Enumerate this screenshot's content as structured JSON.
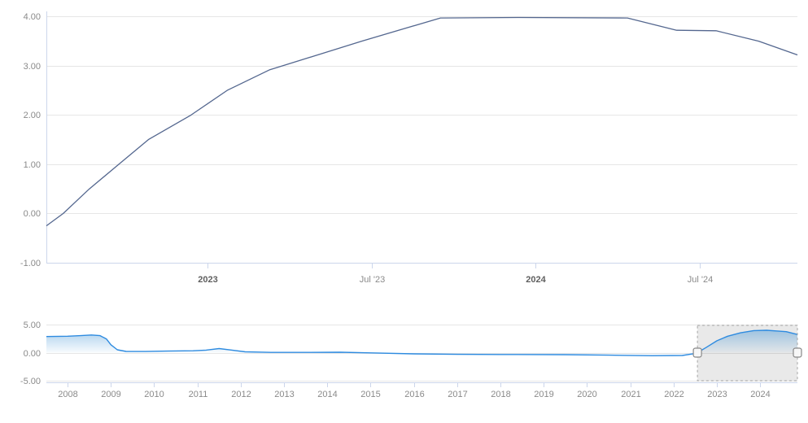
{
  "page": {
    "background": "#ffffff",
    "description": "Stock-style interest rate line chart with bottom range navigator"
  },
  "colors": {
    "main_line": "#54678f",
    "grid": "#e6e6e6",
    "axis": "#ccd6eb",
    "label": "#8a8a8a",
    "label_bold": "#5f5f5f",
    "nav_line": "#2e8be0",
    "nav_fill_top": "rgba(66,148,214,0.55)",
    "nav_fill_bottom": "rgba(66,148,214,0.04)",
    "selection_fill": "rgba(0,0,0,0.085)",
    "selection_border": "#a6a6a6",
    "handle_fill": "#f7f7f7",
    "handle_border": "#888888"
  },
  "chart_data": [
    {
      "id": "main-chart",
      "type": "line",
      "title": "",
      "xlabel": "",
      "ylabel": "",
      "legend": "none",
      "grid": "horizontal",
      "xlim": [
        2022.509,
        2024.798
      ],
      "ylim": [
        -1,
        4.17
      ],
      "x_ticks": [
        {
          "t": 2023.0,
          "label": "2023",
          "bold": true
        },
        {
          "t": 2023.5,
          "label": "Jul '23",
          "bold": false
        },
        {
          "t": 2024.0,
          "label": "2024",
          "bold": true
        },
        {
          "t": 2024.5,
          "label": "Jul '24",
          "bold": false
        }
      ],
      "y_ticks": [
        {
          "v": 4,
          "label": "4.00"
        },
        {
          "v": 3,
          "label": "3.00"
        },
        {
          "v": 2,
          "label": "2.00"
        },
        {
          "v": 1,
          "label": "1.00"
        },
        {
          "v": 0,
          "label": "0.00"
        },
        {
          "v": -1,
          "label": "-1.00"
        }
      ],
      "series": [
        {
          "name": "rate-selected-range",
          "color": "#54678f",
          "points": [
            [
              2022.509,
              -0.25
            ],
            [
              2022.56,
              0.0
            ],
            [
              2022.64,
              0.5
            ],
            [
              2022.73,
              1.0
            ],
            [
              2022.82,
              1.5
            ],
            [
              2022.95,
              2.0
            ],
            [
              2023.06,
              2.5
            ],
            [
              2023.19,
              2.92
            ],
            [
              2023.23,
              3.0
            ],
            [
              2023.47,
              3.5
            ],
            [
              2023.71,
              3.97
            ],
            [
              2023.95,
              3.98
            ],
            [
              2024.28,
              3.97
            ],
            [
              2024.43,
              3.72
            ],
            [
              2024.55,
              3.71
            ],
            [
              2024.68,
              3.5
            ],
            [
              2024.798,
              3.22
            ]
          ]
        }
      ]
    },
    {
      "id": "navigator",
      "type": "area",
      "title": "",
      "legend": "none",
      "grid": "horizontal",
      "xlim": [
        2007.51,
        2024.86
      ],
      "ylim": [
        -5,
        5
      ],
      "x_ticks": [
        {
          "t": 2008,
          "label": "2008"
        },
        {
          "t": 2009,
          "label": "2009"
        },
        {
          "t": 2010,
          "label": "2010"
        },
        {
          "t": 2011,
          "label": "2011"
        },
        {
          "t": 2012,
          "label": "2012"
        },
        {
          "t": 2013,
          "label": "2013"
        },
        {
          "t": 2014,
          "label": "2014"
        },
        {
          "t": 2015,
          "label": "2015"
        },
        {
          "t": 2016,
          "label": "2016"
        },
        {
          "t": 2017,
          "label": "2017"
        },
        {
          "t": 2018,
          "label": "2018"
        },
        {
          "t": 2019,
          "label": "2019"
        },
        {
          "t": 2020,
          "label": "2020"
        },
        {
          "t": 2021,
          "label": "2021"
        },
        {
          "t": 2022,
          "label": "2022"
        },
        {
          "t": 2023,
          "label": "2023"
        },
        {
          "t": 2024,
          "label": "2024"
        }
      ],
      "y_ticks": [
        {
          "v": 5,
          "label": "5.00"
        },
        {
          "v": 0,
          "label": "0.00"
        },
        {
          "v": -5,
          "label": "-5.00"
        }
      ],
      "series": [
        {
          "name": "rate-full-history",
          "color": "#2e8be0",
          "points": [
            [
              2007.51,
              2.85
            ],
            [
              2008.0,
              2.9
            ],
            [
              2008.3,
              3.0
            ],
            [
              2008.55,
              3.12
            ],
            [
              2008.75,
              3.0
            ],
            [
              2008.9,
              2.4
            ],
            [
              2009.0,
              1.4
            ],
            [
              2009.15,
              0.5
            ],
            [
              2009.35,
              0.22
            ],
            [
              2009.8,
              0.2
            ],
            [
              2010.3,
              0.27
            ],
            [
              2010.9,
              0.33
            ],
            [
              2011.2,
              0.45
            ],
            [
              2011.5,
              0.72
            ],
            [
              2011.8,
              0.45
            ],
            [
              2012.1,
              0.15
            ],
            [
              2012.7,
              0.05
            ],
            [
              2013.5,
              0.05
            ],
            [
              2014.3,
              0.07
            ],
            [
              2015.0,
              -0.05
            ],
            [
              2016.0,
              -0.22
            ],
            [
              2017.0,
              -0.3
            ],
            [
              2018.0,
              -0.33
            ],
            [
              2019.5,
              -0.36
            ],
            [
              2020.5,
              -0.45
            ],
            [
              2021.5,
              -0.55
            ],
            [
              2022.2,
              -0.5
            ],
            [
              2022.45,
              -0.2
            ],
            [
              2022.55,
              0.0
            ],
            [
              2022.75,
              0.9
            ],
            [
              2023.0,
              2.1
            ],
            [
              2023.25,
              2.9
            ],
            [
              2023.55,
              3.5
            ],
            [
              2023.85,
              3.9
            ],
            [
              2024.15,
              3.95
            ],
            [
              2024.4,
              3.82
            ],
            [
              2024.6,
              3.7
            ],
            [
              2024.86,
              3.2
            ]
          ]
        }
      ],
      "selection": {
        "from": 2022.55,
        "to": 2024.86
      }
    }
  ]
}
